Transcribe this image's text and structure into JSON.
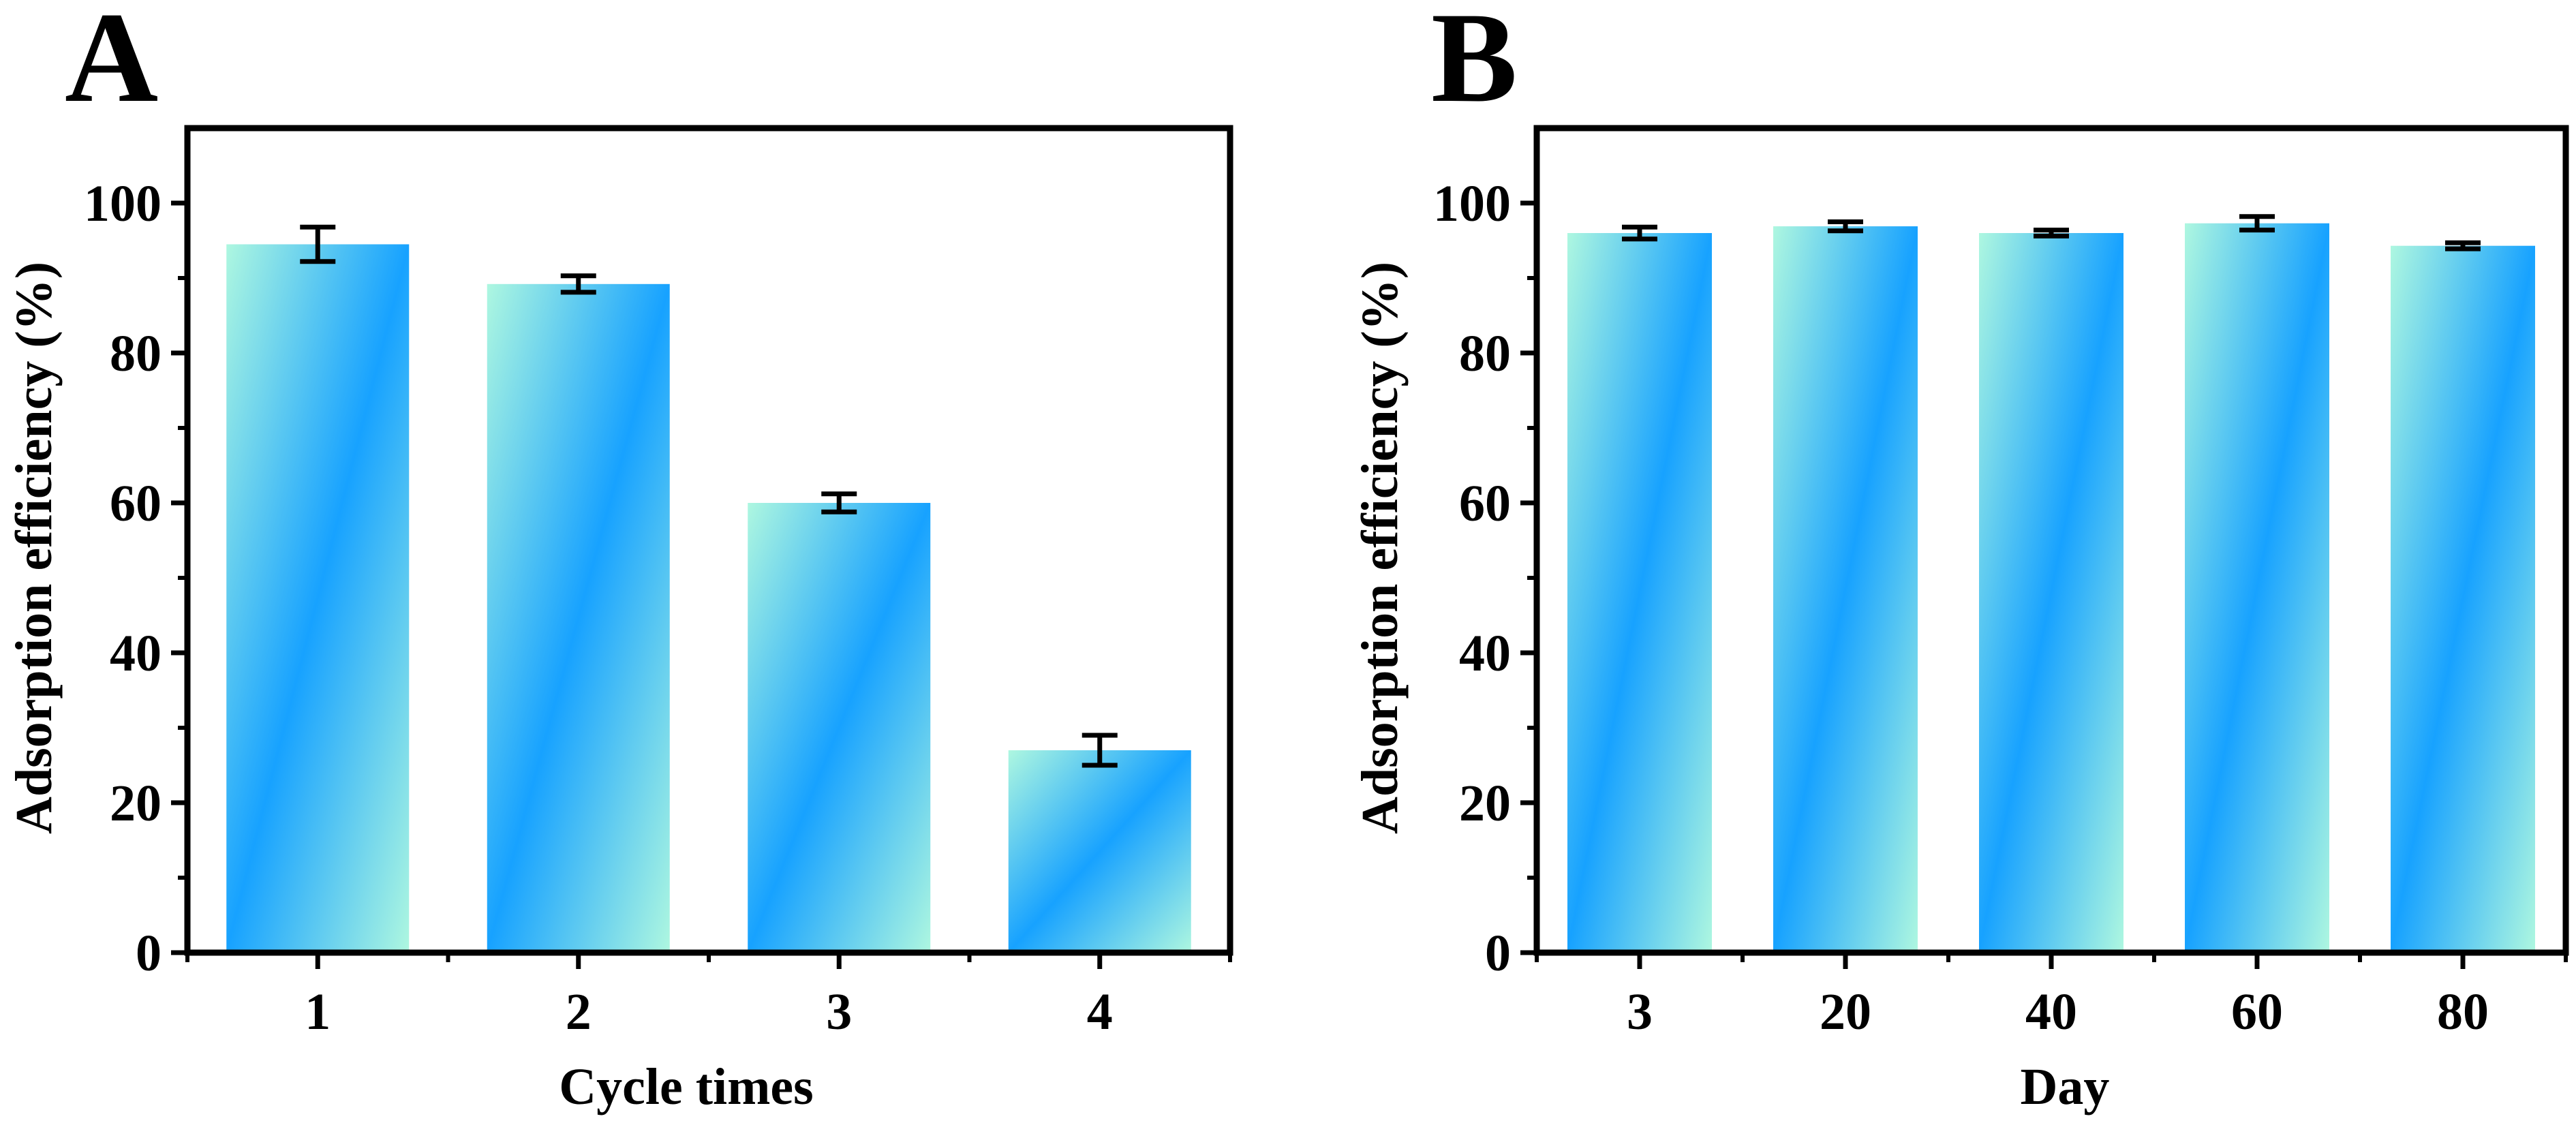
{
  "chart_data": [
    {
      "panel_label": "A",
      "type": "bar",
      "categories": [
        "1",
        "2",
        "3",
        "4"
      ],
      "values": [
        94.5,
        89.2,
        60.0,
        27.0
      ],
      "errors": [
        2.3,
        1.1,
        1.2,
        2.0
      ],
      "xlabel": "Cycle times",
      "ylabel": "Adsorption efficiency (%)",
      "ylim": [
        0,
        110
      ],
      "yticks": [
        0,
        20,
        40,
        60,
        80,
        100
      ],
      "grid": false
    },
    {
      "panel_label": "B",
      "type": "bar",
      "categories": [
        "3",
        "20",
        "40",
        "60",
        "80"
      ],
      "values": [
        96.0,
        96.9,
        96.0,
        97.3,
        94.3
      ],
      "errors": [
        0.8,
        0.6,
        0.4,
        0.9,
        0.4
      ],
      "xlabel": "Day",
      "ylabel": "Adsorption efficiency (%)",
      "ylim": [
        0,
        110
      ],
      "yticks": [
        0,
        20,
        40,
        60,
        80,
        100
      ],
      "grid": false
    }
  ],
  "colors": {
    "bar_light": "#aef7e0",
    "bar_mid": "#60c8f4",
    "bar_strong": "#17a2ff",
    "axis": "#000000"
  }
}
